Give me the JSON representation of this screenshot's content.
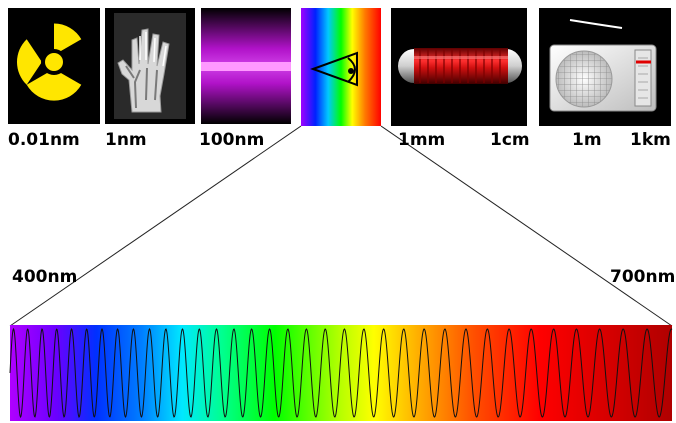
{
  "panel_icons": [
    "radiation-hazard-icon",
    "hand-xray-icon",
    "ultraviolet-lamp-icon",
    "eye-prism-icon",
    "microwave-oven-icon",
    "radio-receiver-icon"
  ],
  "scale_labels": {
    "gamma": "0.01nm",
    "xray": "1nm",
    "ultraviolet": "100nm",
    "mm": "1mm",
    "cm": "1cm",
    "m": "1m",
    "km": "1km"
  },
  "visible_range": {
    "start_label": "400nm",
    "end_label": "700nm",
    "start_nm": 400,
    "end_nm": 700
  },
  "colors": {
    "panel_background": "#000000",
    "radiation_yellow": "#ffe600",
    "uv_purple": "#c41fd6",
    "microwave_red": "#d01818"
  }
}
